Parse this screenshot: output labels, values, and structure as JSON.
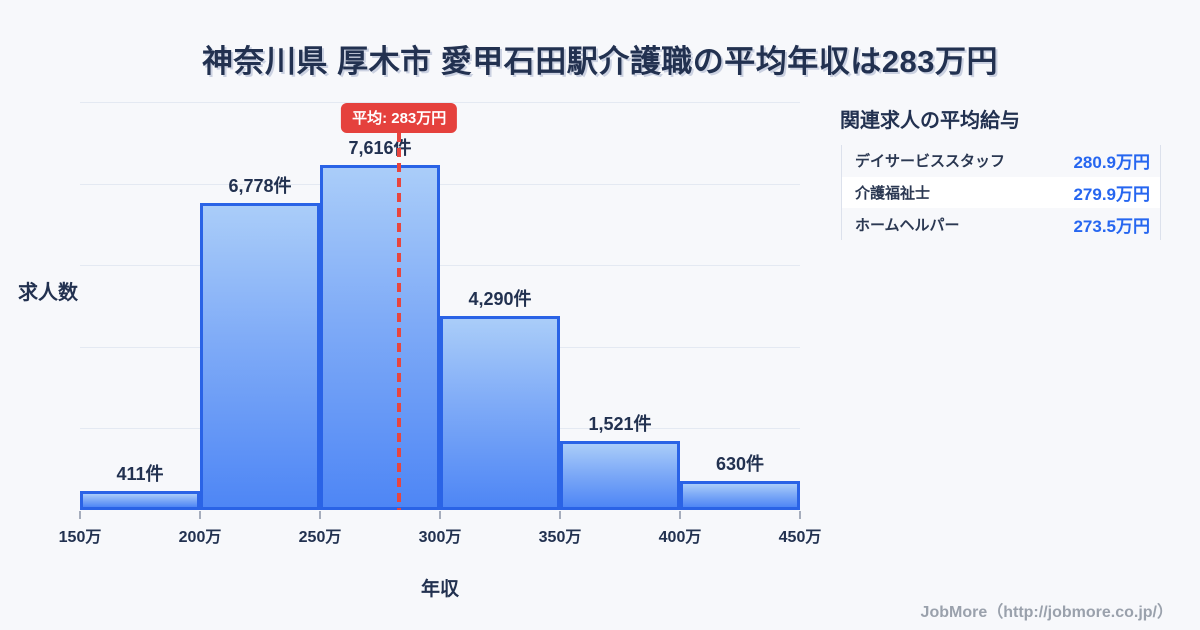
{
  "title": "神奈川県 厚木市 愛甲石田駅介護職の平均年収は283万円",
  "chart_data": {
    "type": "bar",
    "title": "神奈川県 厚木市 愛甲石田駅介護職の平均年収は283万円",
    "categories": [
      "150万-200万",
      "200万-250万",
      "250万-300万",
      "300万-350万",
      "350万-400万",
      "400万-450万"
    ],
    "values": [
      411,
      6778,
      7616,
      4290,
      1521,
      630
    ],
    "bar_labels": [
      "411件",
      "6,778件",
      "7,616件",
      "4,290件",
      "1,521件",
      "630件"
    ],
    "x_tick_labels": [
      "150万",
      "200万",
      "250万",
      "300万",
      "350万",
      "400万",
      "450万"
    ],
    "x_range_man": [
      150,
      450
    ],
    "xlabel": "年収",
    "ylabel": "求人数",
    "ylim": [
      0,
      9000
    ],
    "gridline_count": 5,
    "grid": "horizontal only, y tick labels hidden",
    "legend": "none",
    "average": {
      "value_man": 283,
      "label": "平均: 283万円"
    }
  },
  "sidebar": {
    "heading": "関連求人の平均給与",
    "rows": [
      {
        "label": "デイサービススタッフ",
        "value": "280.9万円"
      },
      {
        "label": "介護福祉士",
        "value": "279.9万円"
      },
      {
        "label": "ホームヘルパー",
        "value": "273.5万円"
      }
    ]
  },
  "footer": {
    "credit": "JobMore（http://jobmore.co.jp/）"
  },
  "colors": {
    "background": "#f7f8fb",
    "text_dark": "#223150",
    "bar_border": "#2a63e6",
    "bar_gradient_top": "#aacdf9",
    "bar_gradient_bottom": "#4e86f5",
    "average_red": "#e5413d",
    "gridline": "#e4e9f2",
    "value_blue": "#2666f0",
    "footer_gray": "#9aa1ac"
  }
}
